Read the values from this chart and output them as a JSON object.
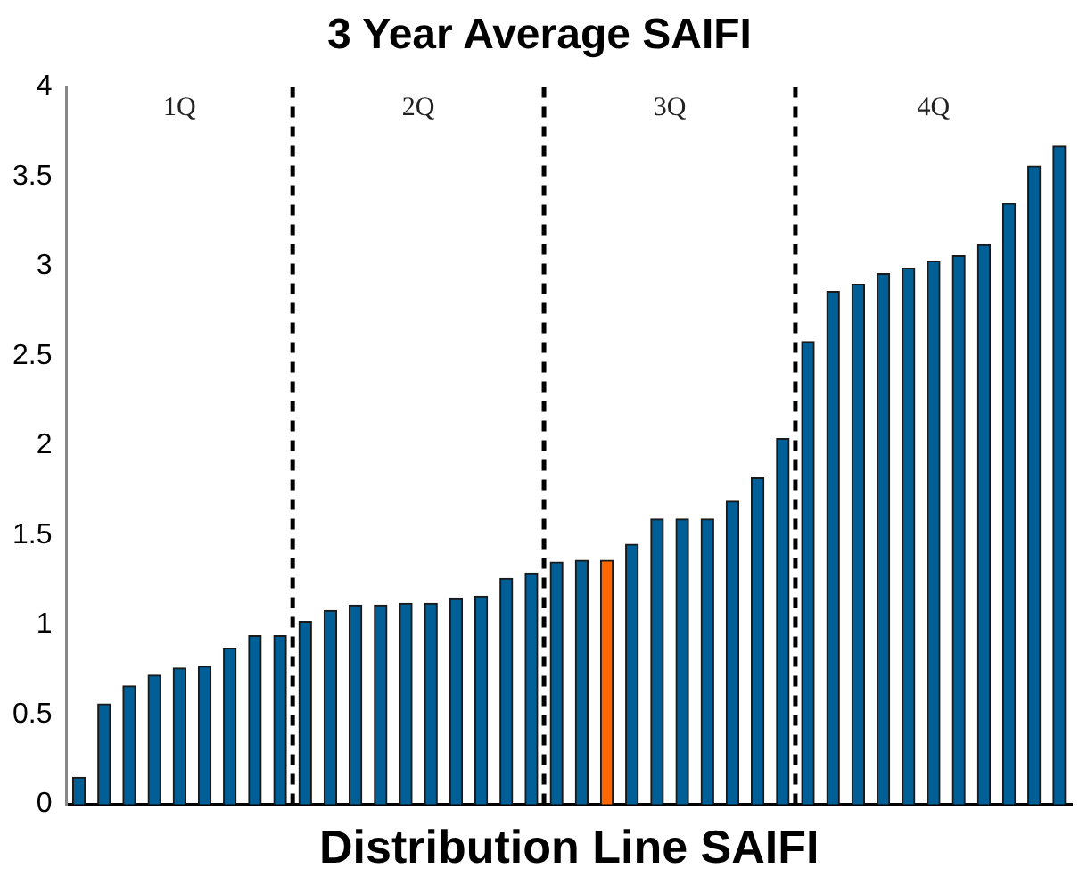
{
  "chart_data": {
    "type": "bar",
    "title": "3 Year Average SAIFI",
    "xlabel": "Distribution Line SAIFI",
    "categories": [
      null,
      null,
      null,
      null,
      null,
      null,
      null,
      null,
      null,
      null,
      null,
      null,
      null,
      null,
      null,
      null,
      null,
      null,
      null,
      null,
      null,
      null,
      null,
      null,
      null,
      null,
      null,
      null,
      null,
      null,
      null,
      null,
      null,
      null,
      null,
      null,
      null,
      null,
      null,
      null
    ],
    "values": [
      0.15,
      0.56,
      0.66,
      0.72,
      0.76,
      0.77,
      0.87,
      0.94,
      0.94,
      1.02,
      1.08,
      1.11,
      1.11,
      1.12,
      1.12,
      1.15,
      1.16,
      1.26,
      1.29,
      1.35,
      1.36,
      1.36,
      1.45,
      1.59,
      1.59,
      1.59,
      1.69,
      1.82,
      2.04,
      2.58,
      2.86,
      2.9,
      2.96,
      2.99,
      3.03,
      3.06,
      3.12,
      3.35,
      3.56,
      3.67
    ],
    "colors": [
      "#005f96",
      "#005f96",
      "#005f96",
      "#005f96",
      "#005f96",
      "#005f96",
      "#005f96",
      "#005f96",
      "#005f96",
      "#005f96",
      "#005f96",
      "#005f96",
      "#005f96",
      "#005f96",
      "#005f96",
      "#005f96",
      "#005f96",
      "#005f96",
      "#005f96",
      "#005f96",
      "#005f96",
      "#ff6600",
      "#005f96",
      "#005f96",
      "#005f96",
      "#005f96",
      "#005f96",
      "#005f96",
      "#005f96",
      "#005f96",
      "#005f96",
      "#005f96",
      "#005f96",
      "#005f96",
      "#005f96",
      "#005f96",
      "#005f96",
      "#005f96",
      "#005f96",
      "#005f96"
    ],
    "ylim": [
      0,
      4
    ],
    "yticks": [
      0,
      0.5,
      1,
      1.5,
      2,
      2.5,
      3,
      3.5,
      4
    ],
    "tick_labels": "y",
    "grid": false,
    "legend": false,
    "annotations": [
      "1Q",
      "2Q",
      "3Q",
      "4Q"
    ]
  }
}
